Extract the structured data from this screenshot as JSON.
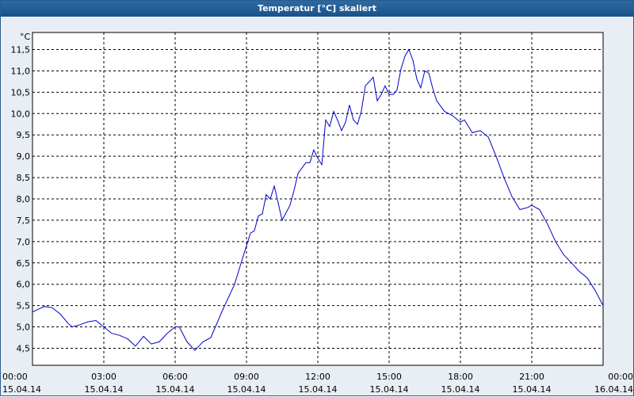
{
  "window": {
    "title": "Temperatur [°C] skaliert"
  },
  "chart_data": {
    "type": "line",
    "title": "Temperatur [°C] skaliert",
    "ylabel": "°C",
    "xlabel": "",
    "ylim": [
      4.1,
      11.9
    ],
    "xlim": [
      0,
      24
    ],
    "grid": true,
    "y_ticks": [
      "11,5",
      "11,0",
      "10,5",
      "10,0",
      "9,5",
      "9,0",
      "8,5",
      "8,0",
      "7,5",
      "7,0",
      "6,5",
      "6,0",
      "5,5",
      "5,0",
      "4,5"
    ],
    "x_ticks": [
      {
        "time": "00:00",
        "date": "15.04.14"
      },
      {
        "time": "03:00",
        "date": "15.04.14"
      },
      {
        "time": "06:00",
        "date": "15.04.14"
      },
      {
        "time": "09:00",
        "date": "15.04.14"
      },
      {
        "time": "12:00",
        "date": "15.04.14"
      },
      {
        "time": "15:00",
        "date": "15.04.14"
      },
      {
        "time": "18:00",
        "date": "15.04.14"
      },
      {
        "time": "21:00",
        "date": "15.04.14"
      },
      {
        "time": "00:00",
        "date": "16.04.14"
      }
    ],
    "colors": {
      "line": "#0000cc",
      "grid": "#000000"
    },
    "series": [
      {
        "x": [
          0,
          0.5,
          0.83,
          1.17,
          1.5,
          1.67,
          2,
          2.33,
          2.67,
          3,
          3.33,
          3.67,
          4,
          4.33,
          4.67,
          5,
          5.33,
          5.67,
          6,
          6.17,
          6.5,
          6.83,
          7.17,
          7.5,
          8,
          8.5,
          8.83,
          9,
          9.17,
          9.33,
          9.5,
          9.67,
          9.83,
          10,
          10.17,
          10.5,
          10.83,
          11,
          11.17,
          11.5,
          11.67,
          11.83,
          12,
          12.17,
          12.33,
          12.5,
          12.67,
          12.83,
          13,
          13.17,
          13.33,
          13.5,
          13.67,
          13.83,
          14,
          14.17,
          14.33,
          14.5,
          14.67,
          14.83,
          15,
          15.17,
          15.33,
          15.5,
          15.67,
          15.83,
          16,
          16.17,
          16.33,
          16.5,
          16.67,
          16.83,
          17,
          17.33,
          17.67,
          18,
          18.17,
          18.5,
          18.83,
          19.17,
          19.5,
          19.83,
          20.17,
          20.5,
          20.83,
          21,
          21.33,
          21.67,
          22,
          22.33,
          22.67,
          23,
          23.33,
          23.67,
          24
        ],
        "values": [
          5.35,
          5.48,
          5.45,
          5.3,
          5.08,
          5.0,
          5.05,
          5.12,
          5.15,
          5.0,
          4.85,
          4.8,
          4.72,
          4.55,
          4.78,
          4.6,
          4.65,
          4.85,
          5.0,
          5.0,
          4.65,
          4.45,
          4.65,
          4.75,
          5.4,
          6.0,
          6.6,
          6.9,
          7.2,
          7.25,
          7.6,
          7.65,
          8.1,
          8.0,
          8.3,
          7.5,
          7.85,
          8.2,
          8.6,
          8.85,
          8.85,
          9.15,
          8.95,
          8.8,
          9.85,
          9.7,
          10.05,
          9.85,
          9.6,
          9.8,
          10.2,
          9.85,
          9.75,
          10.05,
          10.65,
          10.75,
          10.85,
          10.3,
          10.45,
          10.65,
          10.45,
          10.45,
          10.55,
          11.05,
          11.35,
          11.5,
          11.25,
          10.8,
          10.6,
          11.0,
          10.95,
          10.6,
          10.3,
          10.05,
          9.95,
          9.8,
          9.85,
          9.55,
          9.6,
          9.45,
          9.0,
          8.5,
          8.05,
          7.75,
          7.8,
          7.85,
          7.75,
          7.4,
          7.0,
          6.7,
          6.5,
          6.3,
          6.15,
          5.85,
          5.5
        ]
      }
    ]
  }
}
